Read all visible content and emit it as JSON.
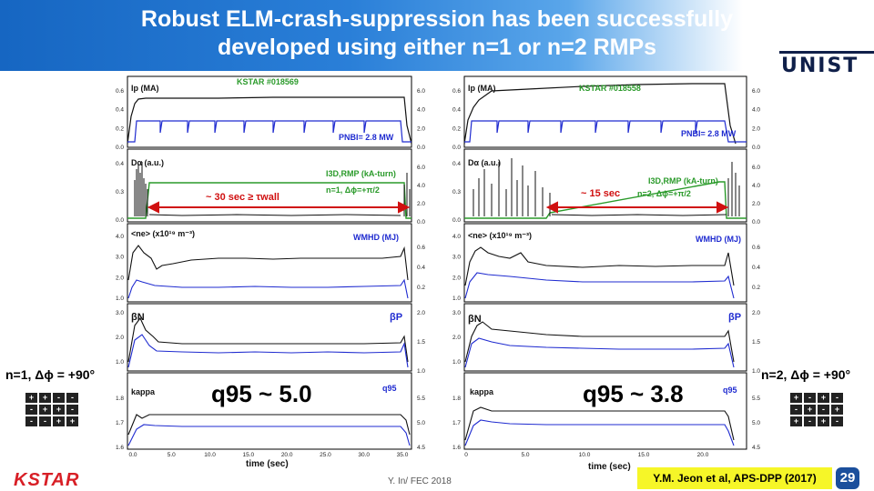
{
  "header": {
    "title_line1": "Robust ELM-crash-suppression has been successfully",
    "title_line2": "developed using either n=1 or n=2 RMPs",
    "logo": "UNIST"
  },
  "left": {
    "shot": "KSTAR #018569",
    "ip_label": "Ip (MA)",
    "pnbi_label": "PNBI= 2.8 MW",
    "da_label": "Dα (a.u.)",
    "irmp_label": "I3D,RMP (kA-turn)",
    "rmp_config": "n=1, Δϕ=+π/2",
    "duration": "~ 30 sec ≥ τwall",
    "ne_label": "<ne> (x10¹⁹ m⁻³)",
    "wmhd_label": "WMHD (MJ)",
    "betan_label": "βN",
    "betap_label": "βP",
    "kappa_label": "kappa",
    "q95_label": "q95",
    "q95_big": "q95 ~ 5.0",
    "xlabel": "time (sec)",
    "xticks": [
      "0.0",
      "5.0",
      "10.0",
      "15.0",
      "20.0",
      "25.0",
      "30.0",
      "35.0"
    ],
    "side_label": "n=1, Δϕ = +90°",
    "pm_grid": [
      "+",
      "+",
      "-",
      "-",
      "-",
      "+",
      "+",
      "-",
      "-",
      "-",
      "+",
      "+"
    ]
  },
  "right": {
    "shot": "KSTAR #018558",
    "ip_label": "Ip (MA)",
    "pnbi_label": "PNBI= 2.8 MW",
    "da_label": "Dα (a.u.)",
    "irmp_label": "I3D,RMP (kA-turn)",
    "rmp_config": "n=2, Δϕ=+π/2",
    "duration": "~ 15 sec",
    "ne_label": "<ne> (x10¹⁹ m⁻³)",
    "wmhd_label": "WMHD (MJ)",
    "betan_label": "βN",
    "betap_label": "βP",
    "kappa_label": "kappa",
    "q95_label": "q95",
    "q95_big": "q95 ~ 3.8",
    "xlabel": "time (sec)",
    "xticks": [
      "0",
      "5.0",
      "10.0",
      "15.0",
      "20.0"
    ],
    "side_label": "n=2, Δϕ = +90°",
    "pm_grid": [
      "+",
      "-",
      "+",
      "-",
      "-",
      "+",
      "-",
      "+",
      "+",
      "-",
      "+",
      "-"
    ]
  },
  "ticks": {
    "ip": [
      "0.6",
      "0.4",
      "0.2",
      "0.0"
    ],
    "pnbi": [
      "6.0",
      "4.0",
      "2.0",
      "0.0"
    ],
    "da": [
      "0.4",
      "0.3",
      "0.0"
    ],
    "irmp": [
      "6.0",
      "4.0",
      "2.0",
      "0.0"
    ],
    "ne": [
      "4.0",
      "3.0",
      "2.0",
      "1.0"
    ],
    "wmhd": [
      "0.6",
      "0.4",
      "0.2"
    ],
    "betan": [
      "3.0",
      "2.0",
      "1.0"
    ],
    "betap": [
      "2.0",
      "1.5",
      "1.0"
    ],
    "kappa": [
      "1.8",
      "1.7",
      "1.6"
    ],
    "q95": [
      "5.5",
      "5.0",
      "4.5"
    ]
  },
  "footer": {
    "kstar": "KSTAR",
    "author": "Y. In/ FEC 2018",
    "citation": "Y.M. Jeon et al, APS-DPP (2017)",
    "page": "29"
  },
  "colors": {
    "blue": "#1f2bd0",
    "green": "#2a9a2a",
    "red": "#d01010",
    "black": "#111111"
  }
}
